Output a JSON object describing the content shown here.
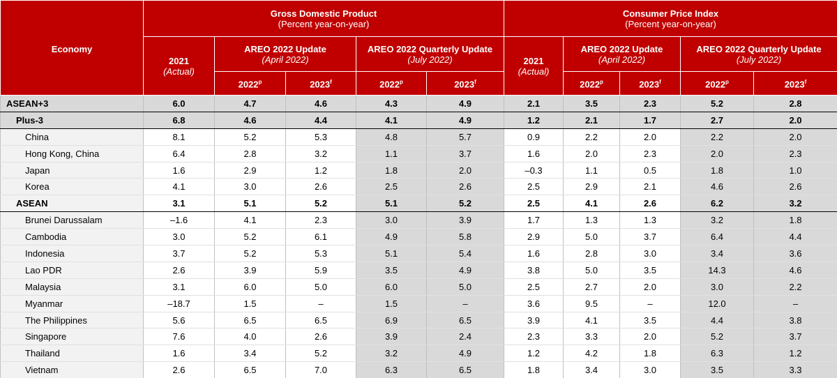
{
  "header": {
    "economy": "Economy",
    "groups": [
      {
        "title": "Gross Domestic Product",
        "subtitle": "(Percent year-on-year)",
        "actual": {
          "year": "2021",
          "note": "(Actual)"
        },
        "updates": [
          {
            "title": "AREO 2022 Update",
            "note": "(April 2022)",
            "years": [
              {
                "year": "2022",
                "sup": "p"
              },
              {
                "year": "2023",
                "sup": "f"
              }
            ]
          },
          {
            "title": "AREO 2022 Quarterly Update",
            "note": "(July 2022)",
            "years": [
              {
                "year": "2022",
                "sup": "p"
              },
              {
                "year": "2023",
                "sup": "f"
              }
            ]
          }
        ]
      },
      {
        "title": "Consumer Price Index",
        "subtitle": "(Percent year-on-year)",
        "actual": {
          "year": "2021",
          "note": "(Actual)"
        },
        "updates": [
          {
            "title": "AREO 2022 Update",
            "note": "(April 2022)",
            "years": [
              {
                "year": "2022",
                "sup": "p"
              },
              {
                "year": "2023",
                "sup": "f"
              }
            ]
          },
          {
            "title": "AREO 2022 Quarterly Update",
            "note": "(July 2022)",
            "years": [
              {
                "year": "2022",
                "sup": "p"
              },
              {
                "year": "2023",
                "sup": "f"
              }
            ]
          }
        ]
      }
    ]
  },
  "table": {
    "rows": [
      {
        "economy": "ASEAN+3",
        "level": 0,
        "bold": true,
        "grey": true,
        "values": [
          "6.0",
          "4.7",
          "4.6",
          "4.3",
          "4.9",
          "2.1",
          "3.5",
          "2.3",
          "5.2",
          "2.8"
        ]
      },
      {
        "economy": "Plus-3",
        "level": 1,
        "bold": true,
        "grey": true,
        "values": [
          "6.8",
          "4.6",
          "4.4",
          "4.1",
          "4.9",
          "1.2",
          "2.1",
          "1.7",
          "2.7",
          "2.0"
        ]
      },
      {
        "economy": "China",
        "level": 2,
        "values": [
          "8.1",
          "5.2",
          "5.3",
          "4.8",
          "5.7",
          "0.9",
          "2.2",
          "2.0",
          "2.2",
          "2.0"
        ]
      },
      {
        "economy": "Hong Kong, China",
        "level": 2,
        "values": [
          "6.4",
          "2.8",
          "3.2",
          "1.1",
          "3.7",
          "1.6",
          "2.0",
          "2.3",
          "2.0",
          "2.3"
        ]
      },
      {
        "economy": "Japan",
        "level": 2,
        "values": [
          "1.6",
          "2.9",
          "1.2",
          "1.8",
          "2.0",
          "–0.3",
          "1.1",
          "0.5",
          "1.8",
          "1.0"
        ]
      },
      {
        "economy": "Korea",
        "level": 2,
        "values": [
          "4.1",
          "3.0",
          "2.6",
          "2.5",
          "2.6",
          "2.5",
          "2.9",
          "2.1",
          "4.6",
          "2.6"
        ]
      },
      {
        "economy": "ASEAN",
        "level": 1,
        "bold": true,
        "values": [
          "3.1",
          "5.1",
          "5.2",
          "5.1",
          "5.2",
          "2.5",
          "4.1",
          "2.6",
          "6.2",
          "3.2"
        ]
      },
      {
        "economy": "Brunei Darussalam",
        "level": 2,
        "values": [
          "–1.6",
          "4.1",
          "2.3",
          "3.0",
          "3.9",
          "1.7",
          "1.3",
          "1.3",
          "3.2",
          "1.8"
        ]
      },
      {
        "economy": "Cambodia",
        "level": 2,
        "values": [
          "3.0",
          "5.2",
          "6.1",
          "4.9",
          "5.8",
          "2.9",
          "5.0",
          "3.7",
          "6.4",
          "4.4"
        ]
      },
      {
        "economy": "Indonesia",
        "level": 2,
        "values": [
          "3.7",
          "5.2",
          "5.3",
          "5.1",
          "5.4",
          "1.6",
          "2.8",
          "3.0",
          "3.4",
          "3.6"
        ]
      },
      {
        "economy": "Lao PDR",
        "level": 2,
        "values": [
          "2.6",
          "3.9",
          "5.9",
          "3.5",
          "4.9",
          "3.8",
          "5.0",
          "3.5",
          "14.3",
          "4.6"
        ]
      },
      {
        "economy": "Malaysia",
        "level": 2,
        "values": [
          "3.1",
          "6.0",
          "5.0",
          "6.0",
          "5.0",
          "2.5",
          "2.7",
          "2.0",
          "3.0",
          "2.2"
        ]
      },
      {
        "economy": "Myanmar",
        "level": 2,
        "values": [
          "–18.7",
          "1.5",
          "–",
          "1.5",
          "–",
          "3.6",
          "9.5",
          "–",
          "12.0",
          "–"
        ]
      },
      {
        "economy": "The Philippines",
        "level": 2,
        "values": [
          "5.6",
          "6.5",
          "6.5",
          "6.9",
          "6.5",
          "3.9",
          "4.1",
          "3.5",
          "4.4",
          "3.8"
        ]
      },
      {
        "economy": "Singapore",
        "level": 2,
        "values": [
          "7.6",
          "4.0",
          "2.6",
          "3.9",
          "2.4",
          "2.3",
          "3.3",
          "2.0",
          "5.2",
          "3.7"
        ]
      },
      {
        "economy": "Thailand",
        "level": 2,
        "values": [
          "1.6",
          "3.4",
          "5.2",
          "3.2",
          "4.9",
          "1.2",
          "4.2",
          "1.8",
          "6.3",
          "1.2"
        ]
      },
      {
        "economy": "Vietnam",
        "level": 2,
        "values": [
          "2.6",
          "6.5",
          "7.0",
          "6.3",
          "6.5",
          "1.8",
          "3.4",
          "3.0",
          "3.5",
          "3.3"
        ]
      }
    ]
  }
}
